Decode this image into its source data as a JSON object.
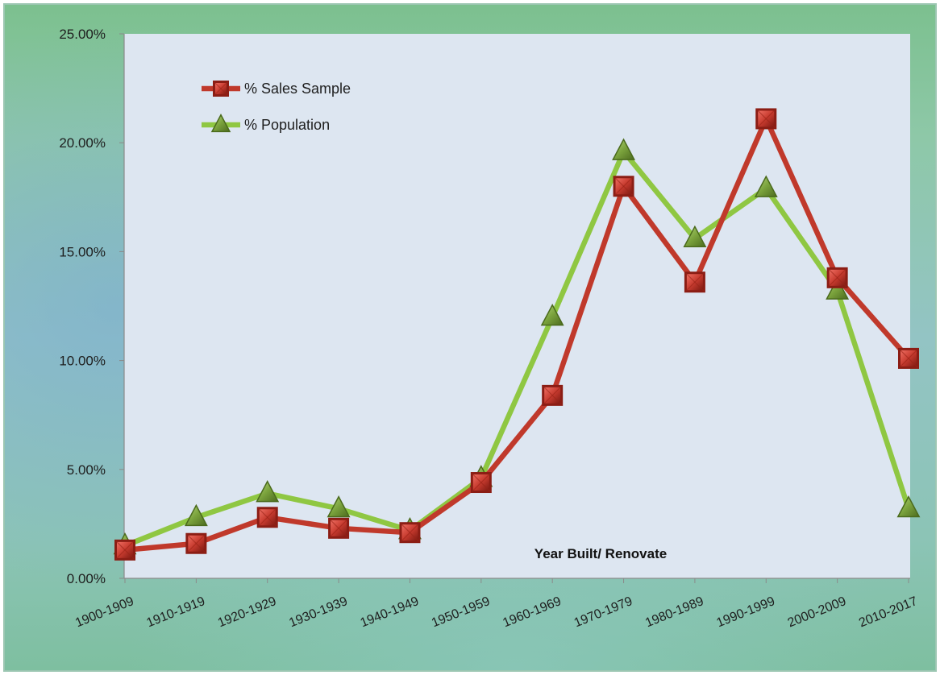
{
  "chart_data": {
    "type": "line",
    "title": "",
    "xlabel": "Year Built/ Renovate",
    "ylabel": "",
    "categories": [
      "1900-1909",
      "1910-1919",
      "1920-1929",
      "1930-1939",
      "1940-1949",
      "1950-1959",
      "1960-1969",
      "1970-1979",
      "1980-1989",
      "1990-1999",
      "2000-2009",
      "2010-2017"
    ],
    "series": [
      {
        "name": "% Sales Sample",
        "color": "#c0392b",
        "marker": "square",
        "values": [
          1.3,
          1.6,
          2.8,
          2.3,
          2.1,
          4.4,
          8.4,
          18.0,
          13.6,
          21.1,
          13.8,
          10.1
        ]
      },
      {
        "name": "% Population",
        "color": "#8fc742",
        "marker": "triangle",
        "values": [
          1.5,
          2.8,
          3.9,
          3.2,
          2.2,
          4.6,
          12.0,
          19.6,
          15.6,
          17.9,
          13.2,
          3.2
        ]
      }
    ],
    "ylim": [
      0,
      25
    ],
    "yticks": [
      "0.00%",
      "5.00%",
      "10.00%",
      "15.00%",
      "20.00%",
      "25.00%"
    ],
    "ytick_values": [
      0,
      5,
      10,
      15,
      20,
      25
    ],
    "legend_position": "top-left",
    "grid": false,
    "plot_background": "#dde6f1"
  }
}
